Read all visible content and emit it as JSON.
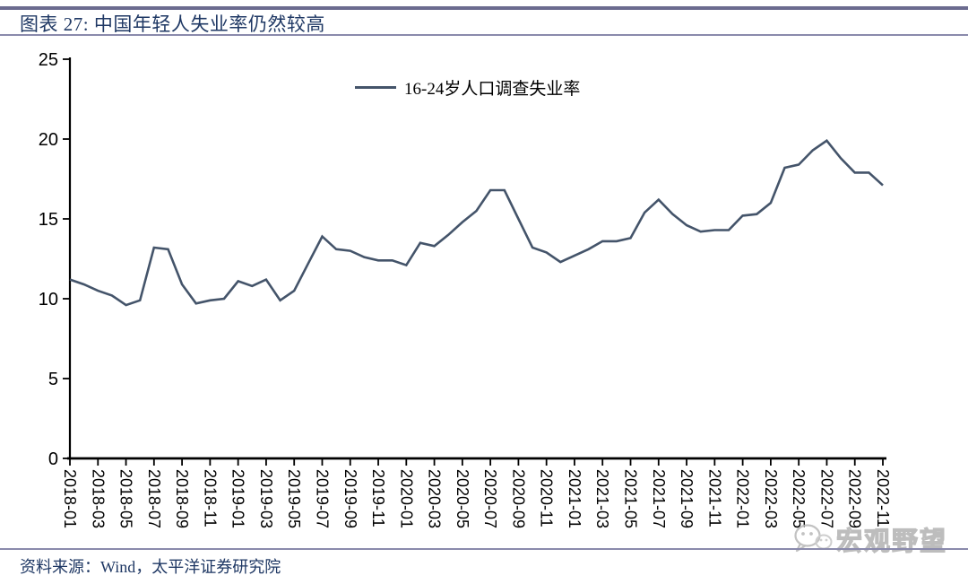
{
  "header": {
    "title": "图表 27: 中国年轻人失业率仍然较高"
  },
  "footer": {
    "source": "资料来源：Wind，太平洋证券研究院"
  },
  "watermark": {
    "icon": "wechat-icon",
    "text": "宏观野望"
  },
  "colors": {
    "series": "#44546A",
    "title_text": "#1F3864",
    "rule": "#6B6B8F",
    "axis": "#000000",
    "watermark": "#B2B2B2"
  },
  "chart_data": {
    "type": "line",
    "title": "图表 27: 中国年轻人失业率仍然较高",
    "xlabel": "",
    "ylabel": "",
    "ylim": [
      0,
      25
    ],
    "yticks": [
      0,
      5,
      10,
      15,
      20,
      25
    ],
    "grid": false,
    "legend_position": "top-center",
    "x_tick_step": 2,
    "x": [
      "2018-01",
      "2018-02",
      "2018-03",
      "2018-04",
      "2018-05",
      "2018-06",
      "2018-07",
      "2018-08",
      "2018-09",
      "2018-10",
      "2018-11",
      "2018-12",
      "2019-01",
      "2019-02",
      "2019-03",
      "2019-04",
      "2019-05",
      "2019-06",
      "2019-07",
      "2019-08",
      "2019-09",
      "2019-10",
      "2019-11",
      "2019-12",
      "2020-01",
      "2020-02",
      "2020-03",
      "2020-04",
      "2020-05",
      "2020-06",
      "2020-07",
      "2020-08",
      "2020-09",
      "2020-10",
      "2020-11",
      "2020-12",
      "2021-01",
      "2021-02",
      "2021-03",
      "2021-04",
      "2021-05",
      "2021-06",
      "2021-07",
      "2021-08",
      "2021-09",
      "2021-10",
      "2021-11",
      "2021-12",
      "2022-01",
      "2022-02",
      "2022-03",
      "2022-04",
      "2022-05",
      "2022-06",
      "2022-07",
      "2022-08",
      "2022-09",
      "2022-10",
      "2022-11"
    ],
    "series": [
      {
        "name": "16-24岁人口调查失业率",
        "color": "#44546A",
        "values": [
          11.2,
          10.9,
          10.5,
          10.2,
          9.6,
          9.9,
          13.2,
          13.1,
          10.9,
          9.7,
          9.9,
          10.0,
          11.1,
          10.8,
          11.2,
          9.9,
          10.5,
          12.2,
          13.9,
          13.1,
          13.0,
          12.6,
          12.4,
          12.4,
          12.1,
          13.5,
          13.3,
          14.0,
          14.8,
          15.5,
          16.8,
          16.8,
          15.0,
          13.2,
          12.9,
          12.3,
          12.7,
          13.1,
          13.6,
          13.6,
          13.8,
          15.4,
          16.2,
          15.3,
          14.6,
          14.2,
          14.3,
          14.3,
          15.2,
          15.3,
          16.0,
          18.2,
          18.4,
          19.3,
          19.9,
          18.8,
          17.9,
          17.9,
          17.1
        ]
      }
    ]
  }
}
